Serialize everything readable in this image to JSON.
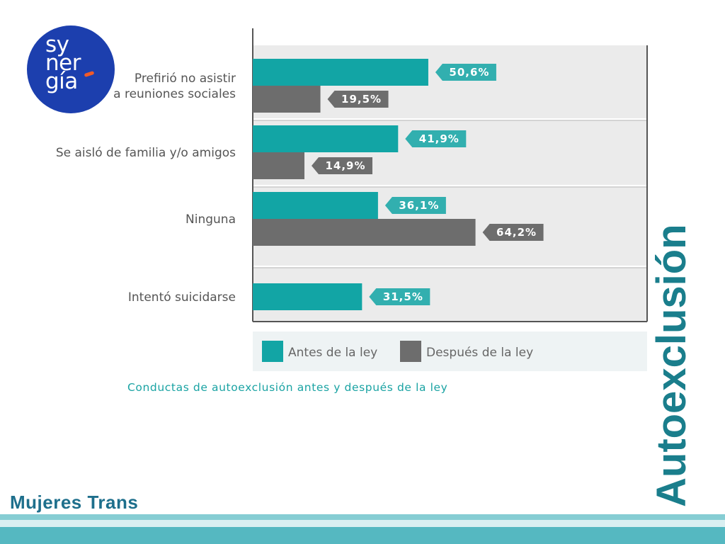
{
  "logo": {
    "lines": [
      "sy",
      "ner",
      "gía"
    ]
  },
  "side_title": "Autoexclusión",
  "footer_title": "Mujeres Trans",
  "colors": {
    "antes": "#12a5a5",
    "despues": "#6d6d6d",
    "panel": "#ebebeb",
    "accent": "#1a7e8c"
  },
  "chart_data": {
    "type": "bar",
    "orientation": "horizontal",
    "title": "Conductas de autoexclusión antes y después de la ley",
    "categories": [
      [
        "Prefirió no asistir",
        "a reuniones sociales"
      ],
      [
        "Se aisló de familia y/o amigos"
      ],
      [
        "Ninguna"
      ],
      [
        "Intentó suicidarse"
      ]
    ],
    "series": [
      {
        "name": "Antes de la ley",
        "values": [
          50.6,
          41.9,
          36.1,
          31.5
        ],
        "labels": [
          "50,6%",
          "41,9%",
          "36,1%",
          "31,5%"
        ]
      },
      {
        "name": "Después de la ley",
        "values": [
          19.5,
          14.9,
          64.2,
          null
        ],
        "labels": [
          "19,5%",
          "14,9%",
          "64,2%",
          ""
        ]
      }
    ],
    "xlim": [
      0,
      100
    ],
    "legend": "bottom",
    "grid": true
  }
}
